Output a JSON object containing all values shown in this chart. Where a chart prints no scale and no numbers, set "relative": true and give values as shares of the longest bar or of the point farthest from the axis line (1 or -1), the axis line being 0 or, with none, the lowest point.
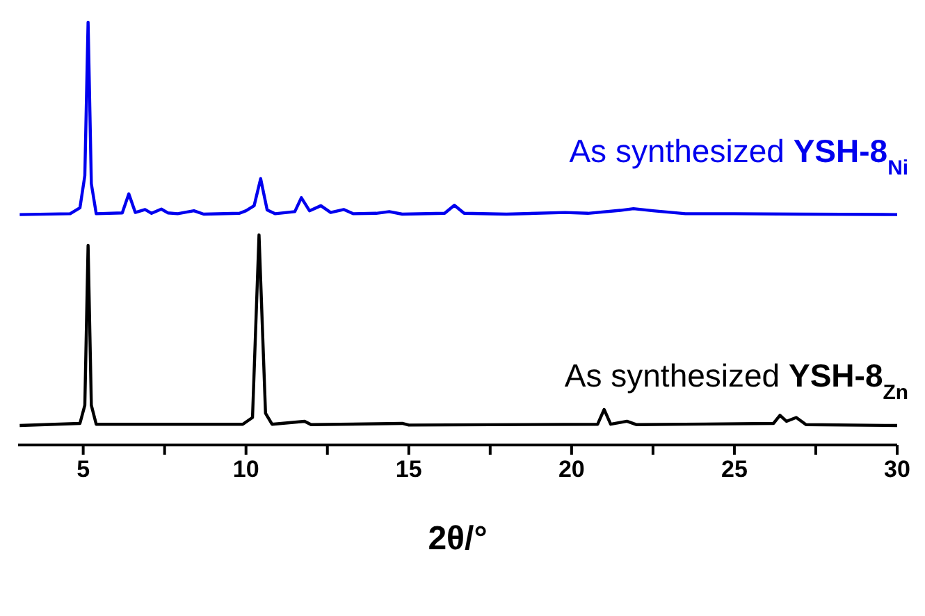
{
  "chart_data": {
    "type": "line",
    "relative": true,
    "xlabel": "2θ/°",
    "xlim": [
      3,
      30
    ],
    "xticks": [
      5,
      {
        "value": 7.5,
        "label": null
      },
      10,
      {
        "value": 12.5,
        "label": null
      },
      15,
      {
        "value": 17.5,
        "label": null
      },
      20,
      {
        "value": 22.5,
        "label": null
      },
      25,
      {
        "value": 27.5,
        "label": null
      },
      30
    ],
    "marker": "none",
    "line_style": "solid",
    "series": [
      {
        "name": "As synthesized YSH-8$_{Ni}$",
        "color": "#0000ee",
        "x": [
          3.05,
          4.6,
          4.9,
          5.05,
          5.15,
          5.25,
          5.4,
          6.2,
          6.4,
          6.6,
          6.9,
          7.1,
          7.4,
          7.6,
          7.9,
          8.4,
          8.7,
          9.8,
          10.0,
          10.25,
          10.45,
          10.65,
          10.9,
          11.5,
          11.7,
          11.95,
          12.3,
          12.6,
          13.0,
          13.3,
          14.0,
          14.4,
          14.8,
          16.1,
          16.4,
          16.7,
          18.0,
          19.8,
          20.5,
          21.5,
          21.9,
          22.5,
          23.5,
          25,
          27,
          30
        ],
        "values": [
          0.545,
          0.547,
          0.561,
          0.637,
          1.0,
          0.618,
          0.547,
          0.549,
          0.594,
          0.55,
          0.557,
          0.548,
          0.558,
          0.549,
          0.547,
          0.554,
          0.546,
          0.548,
          0.554,
          0.566,
          0.63,
          0.556,
          0.547,
          0.552,
          0.585,
          0.554,
          0.566,
          0.55,
          0.557,
          0.547,
          0.548,
          0.552,
          0.546,
          0.548,
          0.567,
          0.548,
          0.546,
          0.55,
          0.548,
          0.555,
          0.559,
          0.554,
          0.547,
          0.547,
          0.546,
          0.545
        ]
      },
      {
        "name": "As synthesized YSH-8$_{Zn}$",
        "color": "#000000",
        "x": [
          3.05,
          4.9,
          5.05,
          5.15,
          5.25,
          5.4,
          9.9,
          10.2,
          10.4,
          10.6,
          10.8,
          11.8,
          12.0,
          14.8,
          15.0,
          20.8,
          21.0,
          21.2,
          21.7,
          22,
          26.2,
          26.4,
          26.6,
          26.9,
          27.2,
          30
        ],
        "values": [
          0.046,
          0.051,
          0.094,
          0.472,
          0.094,
          0.049,
          0.049,
          0.065,
          0.497,
          0.075,
          0.049,
          0.056,
          0.048,
          0.051,
          0.047,
          0.049,
          0.084,
          0.049,
          0.056,
          0.048,
          0.051,
          0.07,
          0.056,
          0.065,
          0.048,
          0.046
        ]
      }
    ]
  }
}
